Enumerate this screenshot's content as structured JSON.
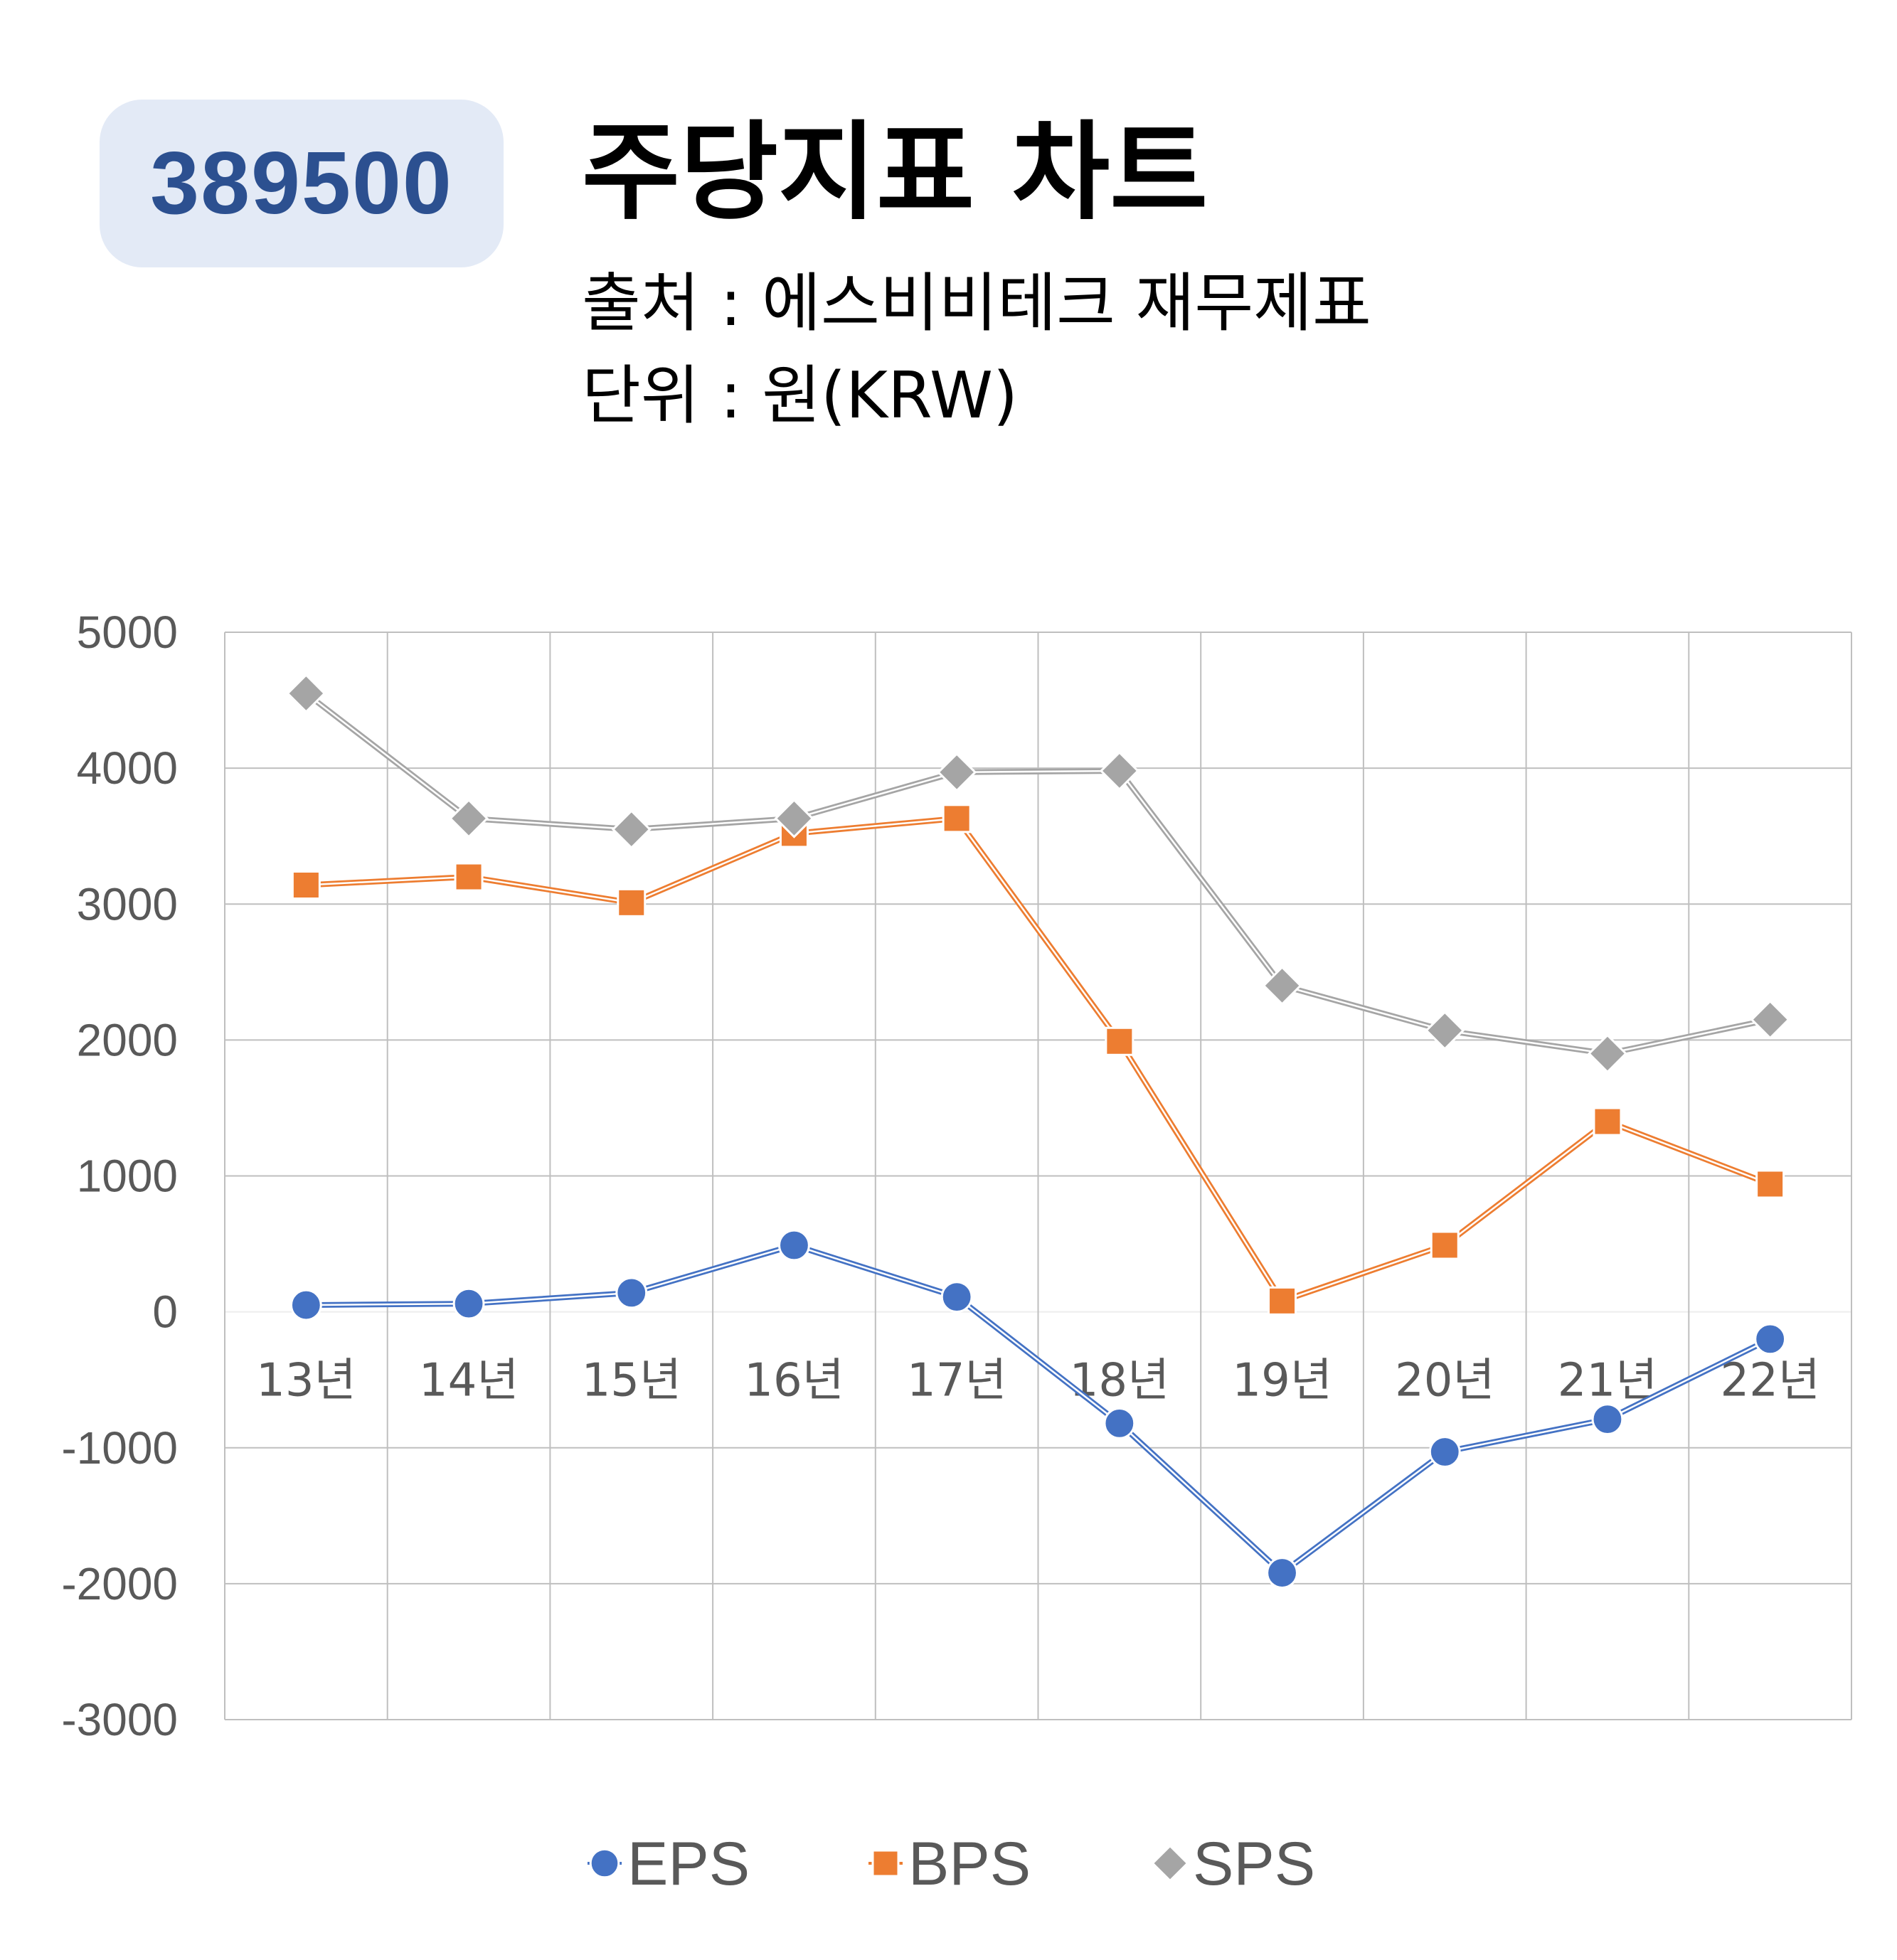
{
  "header": {
    "code": "389500",
    "title": "주당지표 차트",
    "source": "출처 : 에스비비테크 재무제표",
    "unit": "단위 : 원(KRW)"
  },
  "colors": {
    "EPS": "#4472c4",
    "BPS": "#ed7d31",
    "SPS": "#a5a5a5",
    "grid": "#bfbfbf",
    "badge_bg": "#e3eaf6",
    "badge_text": "#2c5090"
  },
  "chart_data": {
    "type": "line",
    "categories": [
      "13년",
      "14년",
      "15년",
      "16년",
      "17년",
      "18년",
      "19년",
      "20년",
      "21년",
      "22년"
    ],
    "y_ticks": [
      "5000",
      "4000",
      "3000",
      "2000",
      "1000",
      "0",
      "-1000",
      "-2000",
      "-3000"
    ],
    "ylim": [
      -3000,
      5000
    ],
    "grid": true,
    "legend_position": "bottom",
    "series": [
      {
        "name": "EPS",
        "marker": "circle",
        "values": [
          50,
          60,
          140,
          490,
          110,
          -820,
          -1920,
          -1030,
          -790,
          -200
        ]
      },
      {
        "name": "BPS",
        "marker": "square",
        "values": [
          3140,
          3200,
          3010,
          3520,
          3630,
          1990,
          80,
          490,
          1400,
          940
        ]
      },
      {
        "name": "SPS",
        "marker": "diamond",
        "values": [
          4550,
          3630,
          3550,
          3630,
          3970,
          3980,
          2400,
          2070,
          1900,
          2150
        ]
      }
    ]
  }
}
